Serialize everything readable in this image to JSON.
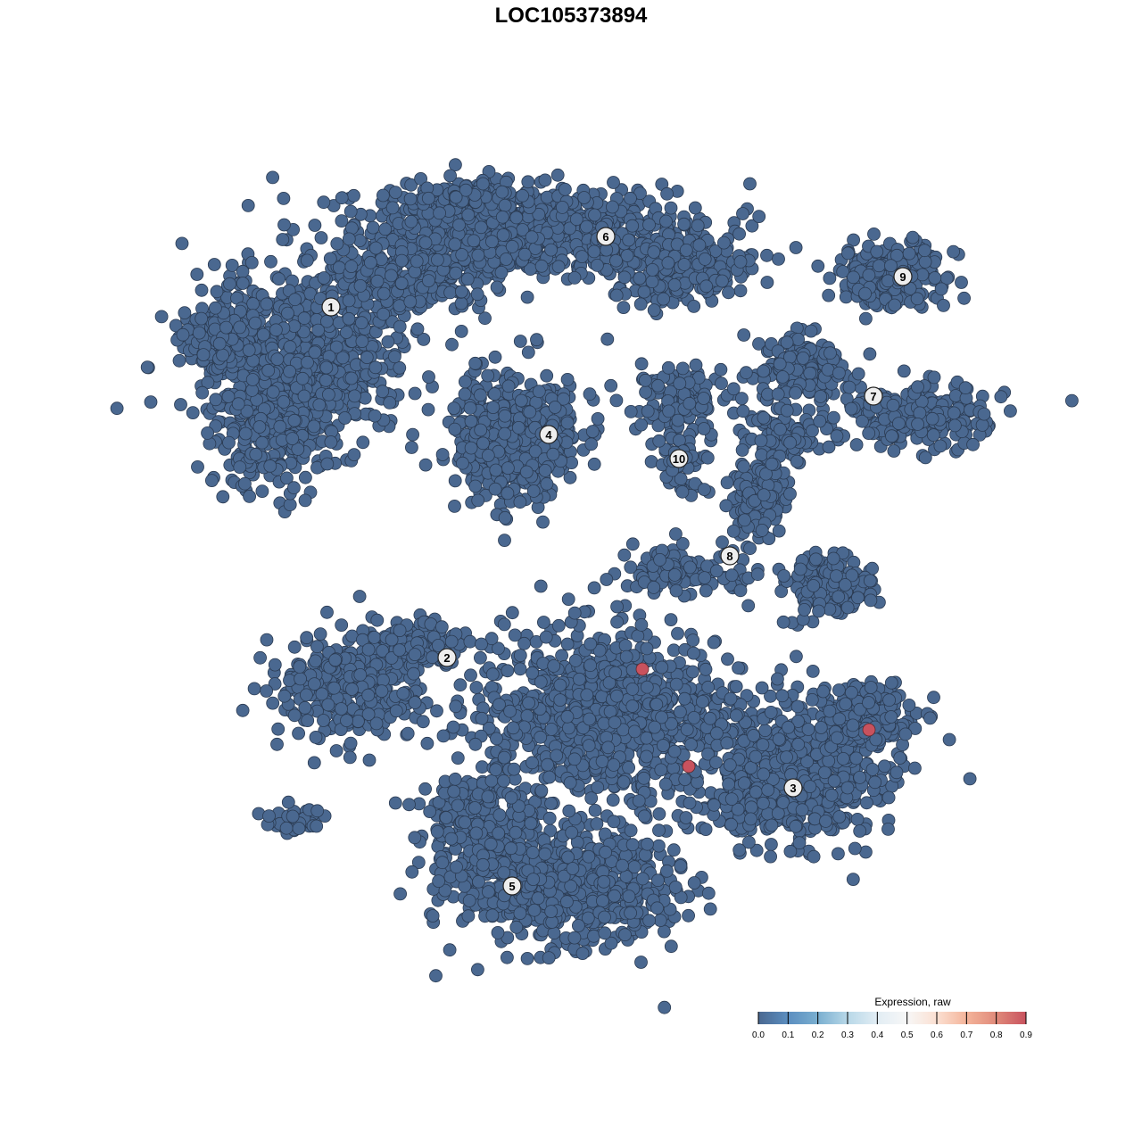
{
  "chart_data": {
    "type": "scatter",
    "title": "LOC105373894",
    "xlabel": "",
    "ylabel": "",
    "axes_visible": false,
    "grid": false,
    "point_color_default": "#4a6890",
    "cluster_labels": [
      {
        "label": "1",
        "x": -26.9,
        "y": 29.6
      },
      {
        "label": "2",
        "x": -13.9,
        "y": -9.7
      },
      {
        "label": "3",
        "x": 24.9,
        "y": -24.3
      },
      {
        "label": "4",
        "x": -2.5,
        "y": 15.3
      },
      {
        "label": "5",
        "x": -6.6,
        "y": -35.3
      },
      {
        "label": "6",
        "x": 3.9,
        "y": 37.5
      },
      {
        "label": "7",
        "x": 33.9,
        "y": 19.6
      },
      {
        "label": "8",
        "x": 17.8,
        "y": 1.7
      },
      {
        "label": "9",
        "x": 37.2,
        "y": 33.0
      },
      {
        "label": "10",
        "x": 12.1,
        "y": 12.6
      }
    ],
    "expressing_points": [
      {
        "x": 8.0,
        "y": -11.0,
        "value": 0.9
      },
      {
        "x": 13.2,
        "y": -21.9,
        "value": 0.9
      },
      {
        "x": 33.4,
        "y": -17.8,
        "value": 0.9
      }
    ],
    "legend": {
      "title": "Expression, raw",
      "placement": "bottom-right",
      "ticks": [
        "0.0",
        "0.1",
        "0.2",
        "0.3",
        "0.4",
        "0.5",
        "0.6",
        "0.7",
        "0.8",
        "0.9"
      ],
      "range": [
        0,
        0.9
      ],
      "colors": [
        "#4a6890",
        "#5b8ec0",
        "#7aafd0",
        "#b8d8e8",
        "#e2edf4",
        "#f7f7f7",
        "#fbe0d2",
        "#f4b49a",
        "#e08a7a",
        "#c8525e"
      ]
    }
  }
}
